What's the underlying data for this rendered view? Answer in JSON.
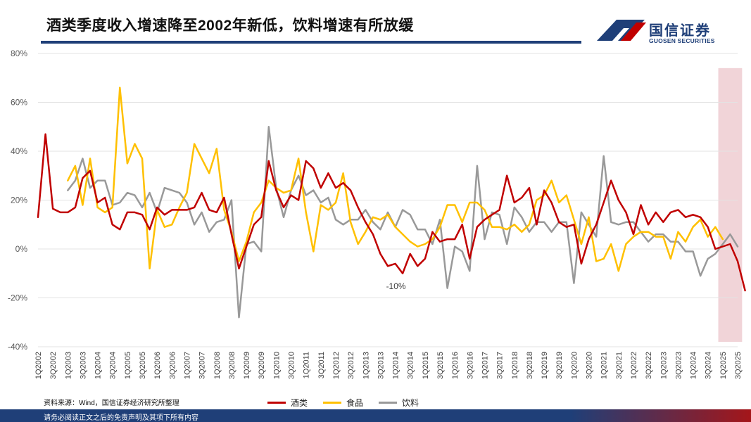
{
  "header": {
    "title": "酒类季度收入增速降至2002年新低，饮料增速有所放缓",
    "logo_text": "国信证券",
    "logo_sub": "GUOSEN SECURITIES"
  },
  "footer": {
    "source": "资料来源：Wind，国信证券经济研究所整理",
    "disclaimer": "请务必阅读正文之后的免责声明及其项下所有内容"
  },
  "colors": {
    "liquor": "#c00000",
    "food": "#ffc000",
    "beverage": "#999999",
    "highlight": "#efccd1",
    "brand": "#1f3f78"
  },
  "chart_data": {
    "type": "line",
    "title": "",
    "xlabel": "",
    "ylabel": "",
    "ylim": [
      -0.4,
      0.8
    ],
    "ytick_labels": [
      "80%",
      "60%",
      "40%",
      "20%",
      "0%",
      "-20%",
      "-40%"
    ],
    "ytick_values": [
      0.8,
      0.6,
      0.4,
      0.2,
      0.0,
      -0.2,
      -0.4
    ],
    "grid": true,
    "legend_position": "bottom",
    "x_start": "1Q2002",
    "x_tick_labels": [
      "1Q2002",
      "3Q2002",
      "1Q2003",
      "3Q2003",
      "1Q2004",
      "3Q2004",
      "1Q2005",
      "3Q2005",
      "1Q2006",
      "3Q2006",
      "1Q2007",
      "3Q2007",
      "1Q2008",
      "3Q2008",
      "1Q2009",
      "3Q2009",
      "1Q2010",
      "3Q2010",
      "1Q2011",
      "3Q2011",
      "1Q2012",
      "3Q2012",
      "1Q2013",
      "3Q2013",
      "1Q2014",
      "3Q2014",
      "1Q2015",
      "3Q2015",
      "1Q2016",
      "3Q2016",
      "1Q2017",
      "3Q2017",
      "1Q2018",
      "3Q2018",
      "1Q2019",
      "3Q2019",
      "1Q2020",
      "3Q2020",
      "1Q2021",
      "3Q2021",
      "1Q2022",
      "3Q2022",
      "1Q2023",
      "3Q2023",
      "1Q2024",
      "3Q2024",
      "1Q2025",
      "3Q2025"
    ],
    "highlight_range": [
      "1Q2025",
      "3Q2025"
    ],
    "annotations": [
      {
        "text": "-10%",
        "x": "1Q2014",
        "y": -0.1
      }
    ],
    "series": [
      {
        "name": "酒类",
        "start_index": 0,
        "values": [
          0.13,
          0.47,
          0.165,
          0.15,
          0.15,
          0.17,
          0.29,
          0.32,
          0.19,
          0.21,
          0.1,
          0.08,
          0.15,
          0.15,
          0.14,
          0.08,
          0.17,
          0.14,
          0.16,
          0.16,
          0.16,
          0.17,
          0.23,
          0.16,
          0.15,
          0.21,
          0.06,
          -0.08,
          0.01,
          0.1,
          0.13,
          0.36,
          0.24,
          0.17,
          0.22,
          0.2,
          0.36,
          0.33,
          0.25,
          0.31,
          0.25,
          0.27,
          0.24,
          0.17,
          0.11,
          0.06,
          -0.02,
          -0.07,
          -0.06,
          -0.1,
          -0.02,
          -0.07,
          -0.04,
          0.07,
          0.03,
          0.04,
          0.04,
          0.1,
          -0.04,
          0.09,
          0.12,
          0.14,
          0.16,
          0.3,
          0.19,
          0.21,
          0.25,
          0.1,
          0.24,
          0.19,
          0.11,
          0.09,
          0.1,
          -0.06,
          0.04,
          0.1,
          0.19,
          0.28,
          0.2,
          0.15,
          0.06,
          0.18,
          0.1,
          0.15,
          0.11,
          0.15,
          0.16,
          0.13,
          0.14,
          0.13,
          0.09,
          0.0,
          0.01,
          0.02,
          -0.05,
          -0.17
        ]
      },
      {
        "name": "食品",
        "start_index": 4,
        "values": [
          0.28,
          0.34,
          0.18,
          0.37,
          0.17,
          0.15,
          0.17,
          0.66,
          0.35,
          0.43,
          0.37,
          -0.08,
          0.16,
          0.09,
          0.1,
          0.17,
          0.23,
          0.43,
          0.37,
          0.31,
          0.41,
          0.16,
          0.07,
          -0.05,
          0.03,
          0.15,
          0.19,
          0.28,
          0.25,
          0.23,
          0.24,
          0.37,
          0.15,
          -0.01,
          0.18,
          0.16,
          0.19,
          0.31,
          0.11,
          0.02,
          0.07,
          0.13,
          0.12,
          0.14,
          0.09,
          0.06,
          0.03,
          0.01,
          0.02,
          0.04,
          0.09,
          0.18,
          0.18,
          0.11,
          0.19,
          0.19,
          0.16,
          0.09,
          0.09,
          0.08,
          0.1,
          0.07,
          0.1,
          0.2,
          0.22,
          0.28,
          0.19,
          0.22,
          0.12,
          0.02,
          0.13,
          -0.05,
          -0.04,
          0.02,
          -0.09,
          0.02,
          0.05,
          0.07,
          0.07,
          0.05,
          0.05,
          -0.04,
          0.07,
          0.03,
          0.09,
          0.12,
          0.05,
          0.09,
          0.04
        ]
      },
      {
        "name": "饮料",
        "start_index": 4,
        "values": [
          0.24,
          0.28,
          0.37,
          0.25,
          0.28,
          0.28,
          0.18,
          0.19,
          0.23,
          0.22,
          0.17,
          0.23,
          0.15,
          0.25,
          0.24,
          0.23,
          0.19,
          0.1,
          0.15,
          0.07,
          0.11,
          0.12,
          0.2,
          -0.28,
          0.02,
          0.03,
          -0.01,
          0.5,
          0.25,
          0.13,
          0.24,
          0.3,
          0.22,
          0.24,
          0.19,
          0.21,
          0.12,
          0.1,
          0.12,
          0.12,
          0.16,
          0.11,
          0.08,
          0.15,
          0.09,
          0.16,
          0.14,
          0.08,
          0.08,
          0.02,
          0.12,
          -0.16,
          0.01,
          -0.01,
          -0.09,
          0.34,
          0.04,
          0.15,
          0.14,
          0.02,
          0.17,
          0.13,
          0.07,
          0.11,
          0.11,
          0.07,
          0.11,
          0.11,
          -0.14,
          0.15,
          0.1,
          0.05,
          0.38,
          0.11,
          0.1,
          0.11,
          0.11,
          0.07,
          0.03,
          0.06,
          0.06,
          0.03,
          0.03,
          -0.01,
          -0.01,
          -0.11,
          -0.04,
          -0.02,
          0.02,
          0.06,
          0.01
        ]
      }
    ]
  }
}
